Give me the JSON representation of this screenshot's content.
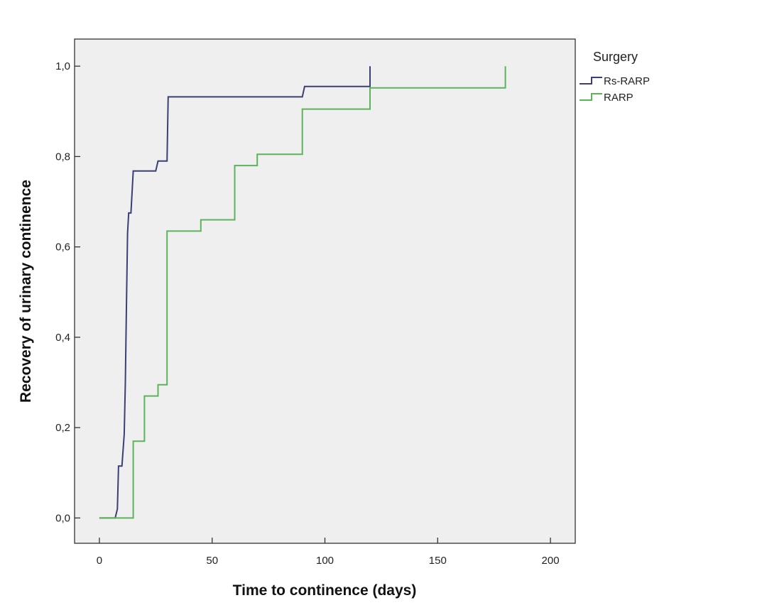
{
  "chart_data": {
    "type": "line",
    "step": true,
    "xlabel": "Time to continence (days)",
    "ylabel": "Recovery of urinary continence",
    "xlim": [
      -11,
      211
    ],
    "ylim": [
      -0.056,
      1.06
    ],
    "x_ticks": [
      0,
      50,
      100,
      150,
      200
    ],
    "x_tick_labels": [
      "0",
      "50",
      "100",
      "150",
      "200"
    ],
    "y_ticks": [
      0,
      0.2,
      0.4,
      0.6,
      0.8,
      1.0
    ],
    "y_tick_labels": [
      "0,0",
      "0,2",
      "0,4",
      "0,6",
      "0,8",
      "1,0"
    ],
    "grid": false,
    "plot_background": "#efefef",
    "legend": {
      "title": "Surgery",
      "placement": "right"
    },
    "series": [
      {
        "name": "Rs-RARP",
        "color": "#3c3f73",
        "x": [
          0,
          7,
          8,
          8.5,
          10,
          11,
          11.5,
          12,
          12.5,
          13,
          14,
          15,
          25,
          26,
          30,
          30.5,
          90,
          91,
          120,
          120
        ],
        "y": [
          0,
          0,
          0.02,
          0.115,
          0.115,
          0.185,
          0.3,
          0.465,
          0.63,
          0.675,
          0.675,
          0.768,
          0.768,
          0.79,
          0.79,
          0.932,
          0.932,
          0.955,
          0.955,
          1.0
        ]
      },
      {
        "name": "RARP",
        "color": "#5cb35c",
        "x": [
          0,
          15,
          15,
          20,
          20,
          26,
          26,
          30,
          30,
          45,
          45,
          60,
          60,
          70,
          70,
          90,
          90,
          120,
          120,
          180,
          180
        ],
        "y": [
          0,
          0,
          0.17,
          0.17,
          0.27,
          0.27,
          0.295,
          0.295,
          0.635,
          0.635,
          0.66,
          0.66,
          0.78,
          0.78,
          0.805,
          0.805,
          0.905,
          0.905,
          0.952,
          0.952,
          1.0
        ]
      }
    ]
  }
}
